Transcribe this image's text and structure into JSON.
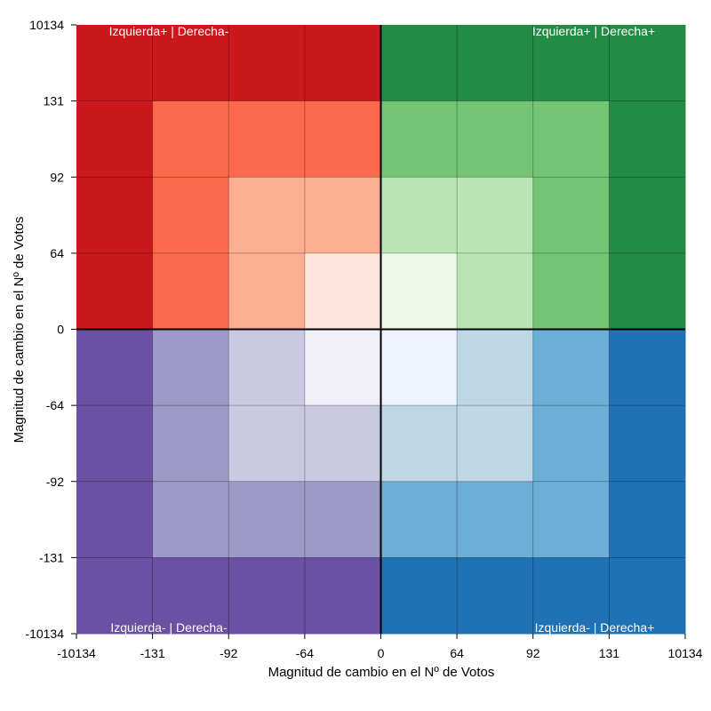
{
  "chart_data": {
    "type": "heatmap",
    "title": "",
    "xlabel": "Magnitud de cambio en el Nº de Votos",
    "ylabel": "Magnitud de cambio en el Nº de Votos",
    "x_ticks": [
      "-10134",
      "-131",
      "-92",
      "-64",
      "0",
      "64",
      "92",
      "131",
      "10134"
    ],
    "y_ticks": [
      "10134",
      "131",
      "92",
      "64",
      "0",
      "-64",
      "-92",
      "-131",
      "-10134"
    ],
    "quadrant_labels": {
      "top_left": "Izquierda+ | Derecha-",
      "top_right": "Izquierda+ | Derecha+",
      "bottom_left": "Izquierda- | Derecha-",
      "bottom_right": "Izquierda- | Derecha+"
    },
    "grid": true,
    "colors": {
      "red_4": "#cb181d",
      "red_3": "#fb6a4a",
      "red_2": "#fcae91",
      "red_1": "#fee5d9",
      "green_4": "#238b45",
      "green_3": "#74c476",
      "green_2": "#bae4b3",
      "green_1": "#edf8e9",
      "purple_4": "#6a51a3",
      "purple_3": "#9e9ac8",
      "purple_2": "#cbc9e2",
      "purple_1": "#f2f0f7",
      "blue_4": "#2171b5",
      "blue_3": "#6baed6",
      "blue_2": "#bdd7e7",
      "blue_1": "#eff3ff"
    },
    "cells": [
      [
        "red_4",
        "red_4",
        "red_4",
        "red_4",
        "green_4",
        "green_4",
        "green_4",
        "green_4"
      ],
      [
        "red_4",
        "red_3",
        "red_3",
        "red_3",
        "green_3",
        "green_3",
        "green_3",
        "green_4"
      ],
      [
        "red_4",
        "red_3",
        "red_2",
        "red_2",
        "green_2",
        "green_2",
        "green_3",
        "green_4"
      ],
      [
        "red_4",
        "red_3",
        "red_2",
        "red_1",
        "green_1",
        "green_2",
        "green_3",
        "green_4"
      ],
      [
        "purple_4",
        "purple_3",
        "purple_2",
        "purple_1",
        "blue_1",
        "blue_2",
        "blue_3",
        "blue_4"
      ],
      [
        "purple_4",
        "purple_3",
        "purple_2",
        "purple_2",
        "blue_2",
        "blue_2",
        "blue_3",
        "blue_4"
      ],
      [
        "purple_4",
        "purple_3",
        "purple_3",
        "purple_3",
        "blue_3",
        "blue_3",
        "blue_3",
        "blue_4"
      ],
      [
        "purple_4",
        "purple_4",
        "purple_4",
        "purple_4",
        "blue_4",
        "blue_4",
        "blue_4",
        "blue_4"
      ]
    ]
  }
}
